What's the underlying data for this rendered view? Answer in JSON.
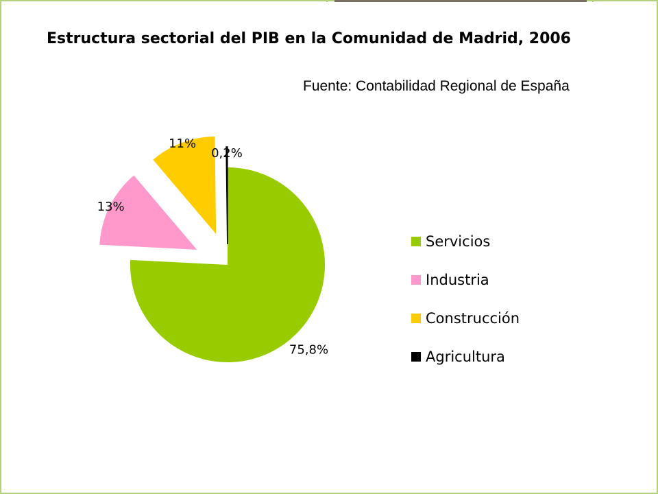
{
  "title": "Estructura sectorial del PIB en la Comunidad de Madrid, 2006",
  "source": "Fuente: Contabilidad Regional de España",
  "chart_data": {
    "type": "pie",
    "title": "Estructura sectorial del PIB en la Comunidad de Madrid, 2006",
    "legend_placement": "right",
    "exploded": true,
    "slices": [
      {
        "name": "Servicios",
        "value": 75.8,
        "label": "75,8%",
        "color": "#99cc00"
      },
      {
        "name": "Industria",
        "value": 13,
        "label": "13%",
        "color": "#ff99cc"
      },
      {
        "name": "Construcción",
        "value": 11,
        "label": "11%",
        "color": "#ffcc00"
      },
      {
        "name": "Agricultura",
        "value": 0.2,
        "label": "0,2%",
        "color": "#000000"
      }
    ]
  }
}
